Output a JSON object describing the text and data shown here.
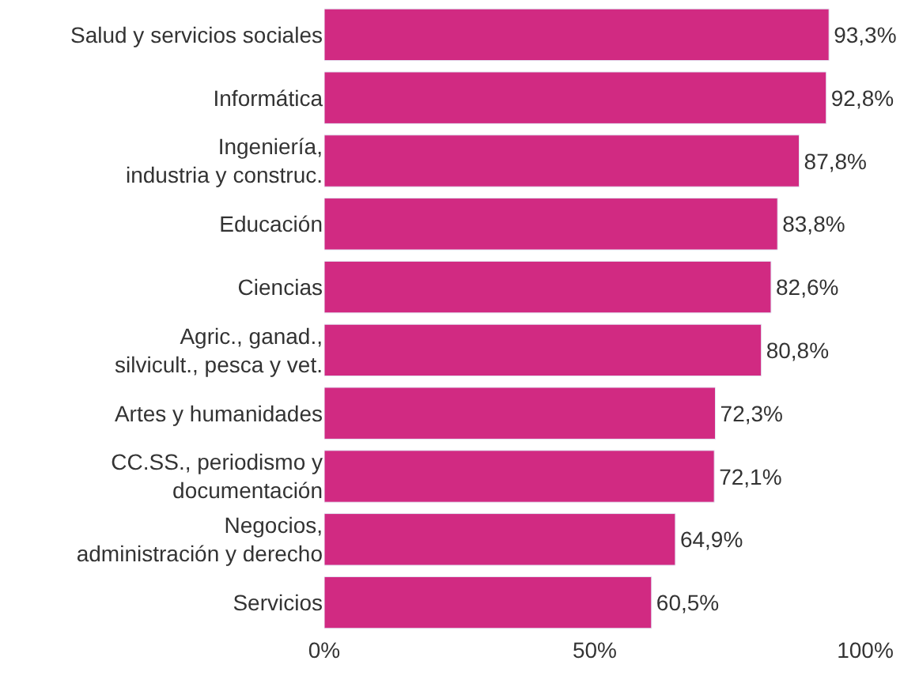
{
  "chart_data": {
    "type": "bar",
    "orientation": "horizontal",
    "categories": [
      "Salud y servicios sociales",
      "Informática",
      "Ingeniería,\nindustria y construc.",
      "Educación",
      "Ciencias",
      "Agric., ganad.,\nsilvicult., pesca y vet.",
      "Artes y humanidades",
      "CC.SS., periodismo y\ndocumentación",
      "Negocios,\nadministración y derecho",
      "Servicios"
    ],
    "values": [
      93.3,
      92.8,
      87.8,
      83.8,
      82.6,
      80.8,
      72.3,
      72.1,
      64.9,
      60.5
    ],
    "value_labels": [
      "93,3%",
      "92,8%",
      "87,8%",
      "83,8%",
      "82,6%",
      "80,8%",
      "72,3%",
      "72,1%",
      "64,9%",
      "60,5%"
    ],
    "color": "#d12a82",
    "xlim": [
      0,
      100
    ],
    "xticks": [
      {
        "value": 0,
        "label": "0%"
      },
      {
        "value": 50,
        "label": "50%"
      },
      {
        "value": 100,
        "label": "100%"
      }
    ],
    "grid": false
  }
}
